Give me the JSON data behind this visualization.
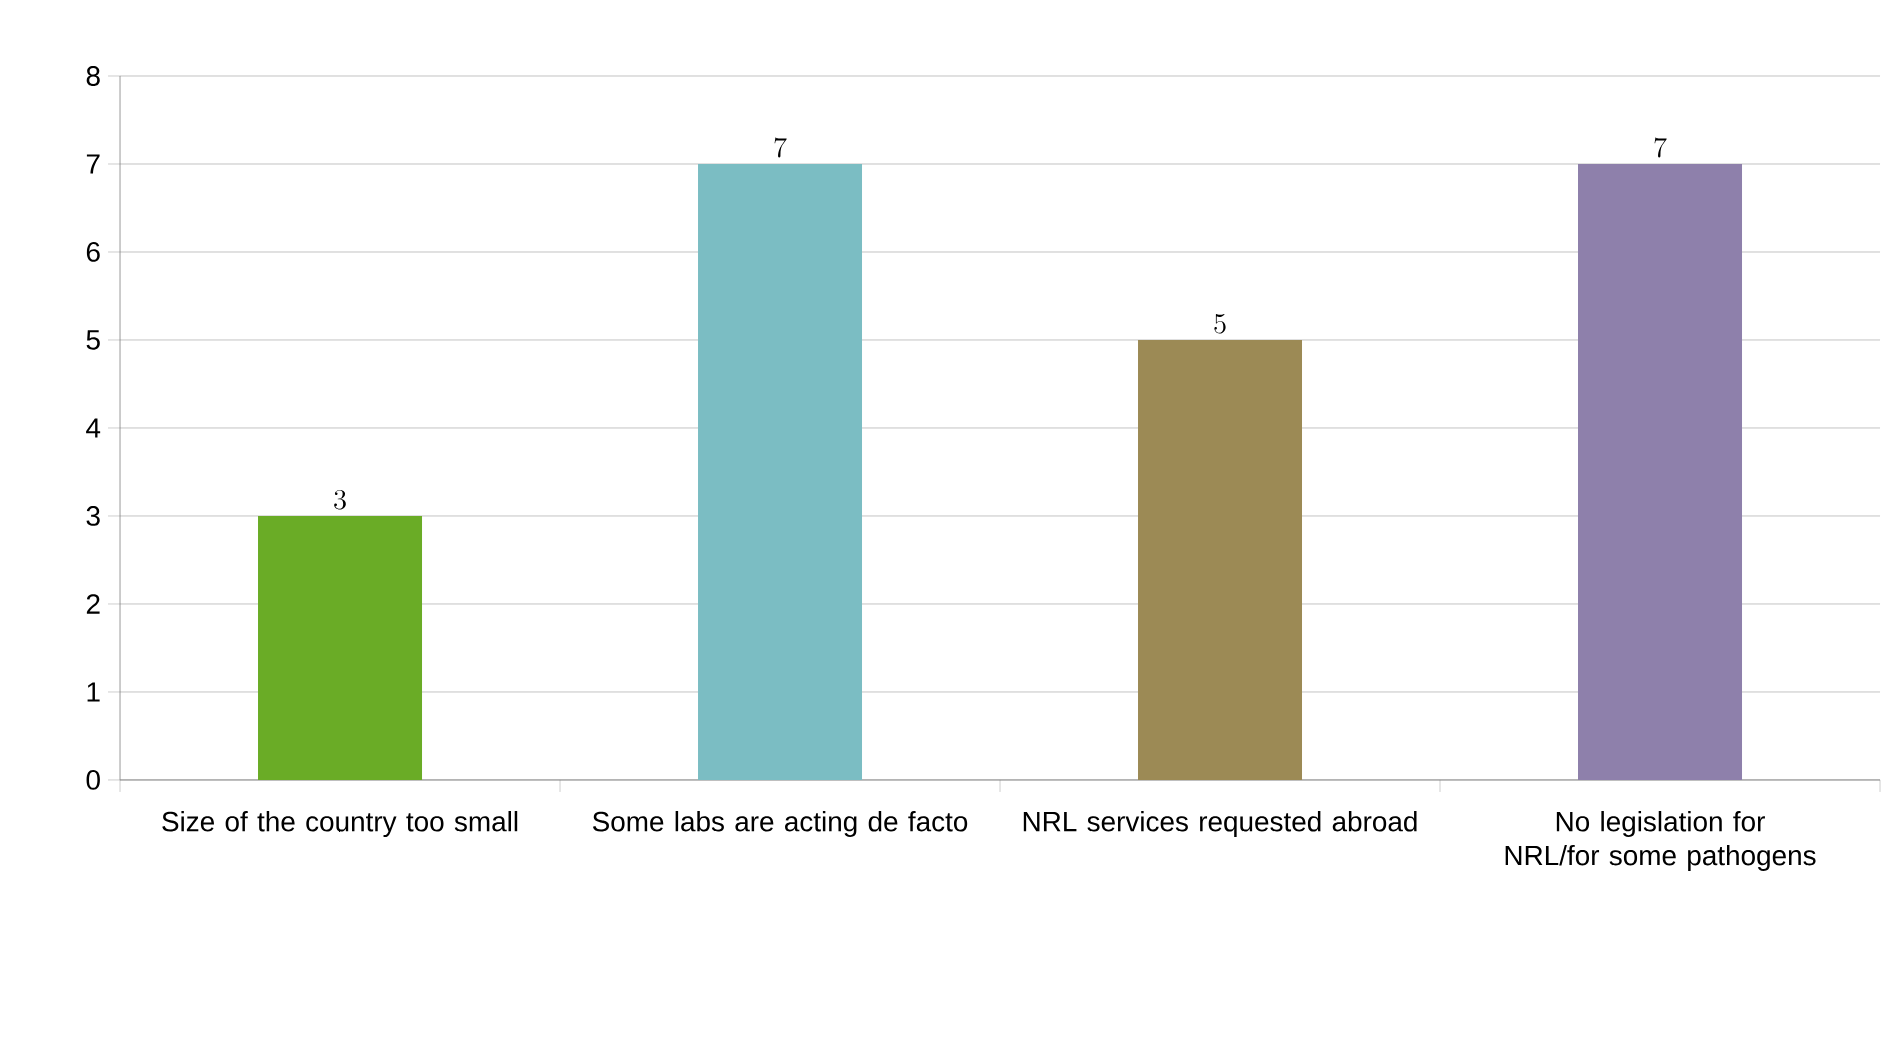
{
  "chart_data": {
    "type": "bar",
    "categories": [
      "Size of the country too small",
      "Some labs are acting de facto",
      "NRL services requested abroad",
      "No legislation for NRL/for some pathogens"
    ],
    "values": [
      3,
      7,
      5,
      7
    ],
    "colors": [
      "#6aac26",
      "#7bbdc3",
      "#9c8a55",
      "#8e80ab"
    ],
    "ylim": [
      0,
      8
    ],
    "yticks": [
      0,
      1,
      2,
      3,
      4,
      5,
      6,
      7,
      8
    ],
    "grid": "y",
    "data_labels": true
  }
}
